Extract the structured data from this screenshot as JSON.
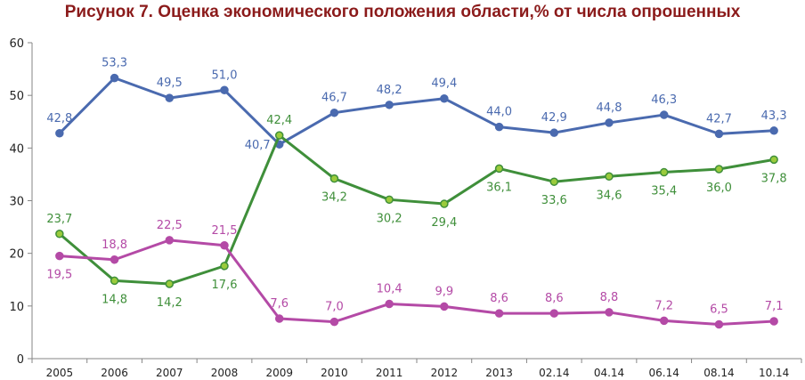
{
  "chart_data": {
    "type": "line",
    "title": "Рисунок 7. Оценка экономического положения области,% от числа опрошенных",
    "xlabel": "",
    "ylabel": "",
    "categories": [
      "2005",
      "2006",
      "2007",
      "2008",
      "2009",
      "2010",
      "2011",
      "2012",
      "2013",
      "02.14",
      "04.14",
      "06.14",
      "08.14",
      "10.14"
    ],
    "ylim": [
      0,
      60
    ],
    "yticks": [
      0,
      10,
      20,
      30,
      40,
      50,
      60
    ],
    "grid": false,
    "legend": "none",
    "series": [
      {
        "color": "#4A6AAF",
        "values": [
          42.8,
          53.3,
          49.5,
          51.0,
          40.7,
          46.7,
          48.2,
          49.4,
          44.0,
          42.9,
          44.8,
          46.3,
          42.7,
          43.3
        ],
        "labels": [
          "42,8",
          "53,3",
          "49,5",
          "51,0",
          "40,7",
          "46,7",
          "48,2",
          "49,4",
          "44,0",
          "42,9",
          "44,8",
          "46,3",
          "42,7",
          "43,3"
        ],
        "label_pos": [
          "above",
          "above",
          "above",
          "above",
          "left",
          "above",
          "above",
          "above",
          "above",
          "above",
          "above",
          "above",
          "above",
          "above"
        ]
      },
      {
        "color": "#3F8F3A",
        "marker_fill": "#9BCB3C",
        "values": [
          23.7,
          14.8,
          14.2,
          17.6,
          42.4,
          34.2,
          30.2,
          29.4,
          36.1,
          33.6,
          34.6,
          35.4,
          36.0,
          37.8
        ],
        "labels": [
          "23,7",
          "14,8",
          "14,2",
          "17,6",
          "42,4",
          "34,2",
          "30,2",
          "29,4",
          "36,1",
          "33,6",
          "34,6",
          "35,4",
          "36,0",
          "37,8"
        ],
        "label_pos": [
          "above",
          "below",
          "below",
          "below",
          "above",
          "below",
          "below",
          "below",
          "below",
          "below",
          "below",
          "below",
          "below",
          "below"
        ]
      },
      {
        "color": "#B44AA6",
        "values": [
          19.5,
          18.8,
          22.5,
          21.5,
          7.6,
          7.0,
          10.4,
          9.9,
          8.6,
          8.6,
          8.8,
          7.2,
          6.5,
          7.1
        ],
        "labels": [
          "19,5",
          "18,8",
          "22,5",
          "21,5",
          "7,6",
          "7,0",
          "10,4",
          "9,9",
          "8,6",
          "8,6",
          "8,8",
          "7,2",
          "6,5",
          "7,1"
        ],
        "label_pos": [
          "below",
          "above",
          "above",
          "above",
          "above",
          "above",
          "above",
          "above",
          "above",
          "above",
          "above",
          "above",
          "above",
          "above"
        ]
      }
    ]
  }
}
